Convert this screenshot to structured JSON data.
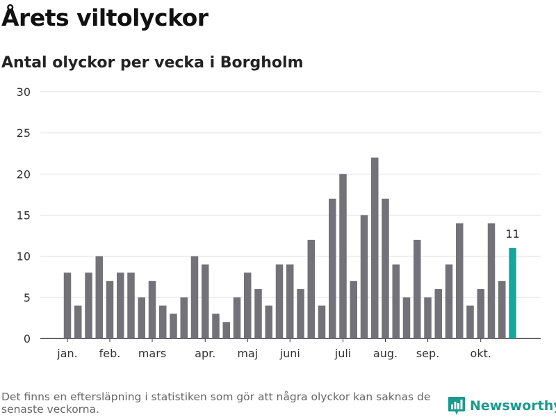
{
  "title": "Årets viltolyckor",
  "subtitle": "Antal olyckor per vecka i Borgholm",
  "footnote": "Det finns en eftersläpning i statistiken som gör att några olyckor kan saknas de senaste veckorna.",
  "brand": {
    "name": "Newsworthy",
    "color": "#1a9a8c",
    "icon": "bar-chart-logo-icon"
  },
  "colors": {
    "bar": "#737278",
    "highlight": "#13a89e",
    "grid": "#dddddd",
    "axis": "#333333"
  },
  "chart_data": {
    "type": "bar",
    "values": [
      8,
      4,
      8,
      10,
      7,
      8,
      8,
      5,
      7,
      4,
      3,
      5,
      10,
      9,
      3,
      2,
      5,
      8,
      6,
      4,
      9,
      9,
      6,
      12,
      4,
      17,
      20,
      7,
      15,
      22,
      17,
      9,
      5,
      12,
      5,
      6,
      9,
      14,
      4,
      6,
      14,
      7,
      11
    ],
    "highlight_index": 42,
    "highlight_label": "11",
    "ylim": [
      0,
      30
    ],
    "yticks": [
      0,
      5,
      10,
      15,
      20,
      25,
      30
    ],
    "xtick_labels": [
      {
        "label": "jan.",
        "bar_index": 0
      },
      {
        "label": "feb.",
        "bar_index": 4
      },
      {
        "label": "mars",
        "bar_index": 8
      },
      {
        "label": "apr.",
        "bar_index": 13
      },
      {
        "label": "maj",
        "bar_index": 17
      },
      {
        "label": "juni",
        "bar_index": 21
      },
      {
        "label": "juli",
        "bar_index": 26
      },
      {
        "label": "aug.",
        "bar_index": 30
      },
      {
        "label": "sep.",
        "bar_index": 34
      },
      {
        "label": "okt.",
        "bar_index": 39
      }
    ],
    "grid": true,
    "legend": "none"
  }
}
